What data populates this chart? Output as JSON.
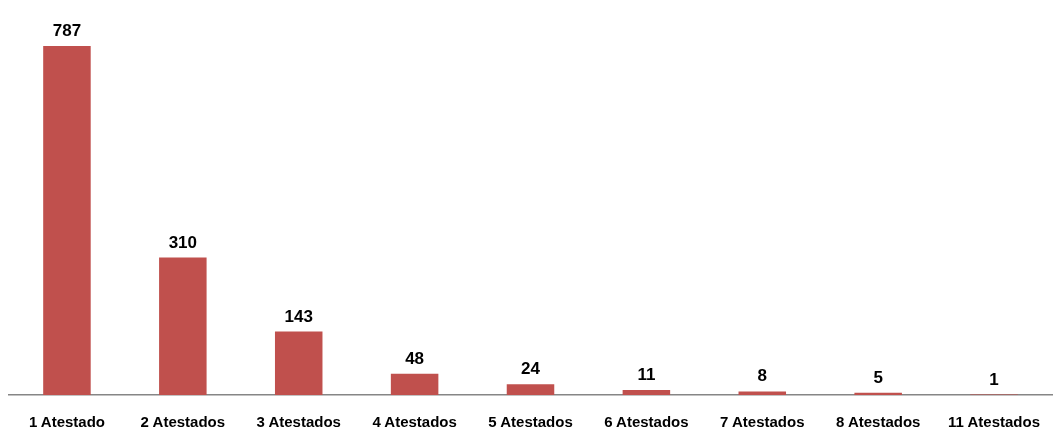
{
  "chart_data": {
    "type": "bar",
    "categories": [
      "1 Atestado",
      "2 Atestados",
      "3 Atestados",
      "4 Atestados",
      "5 Atestados",
      "6 Atestados",
      "7 Atestados",
      "8 Atestados",
      "11 Atestados"
    ],
    "values": [
      787,
      310,
      143,
      48,
      24,
      11,
      8,
      5,
      1
    ],
    "color": "#c0504d",
    "data_labels": true,
    "tick_labels": "x"
  }
}
